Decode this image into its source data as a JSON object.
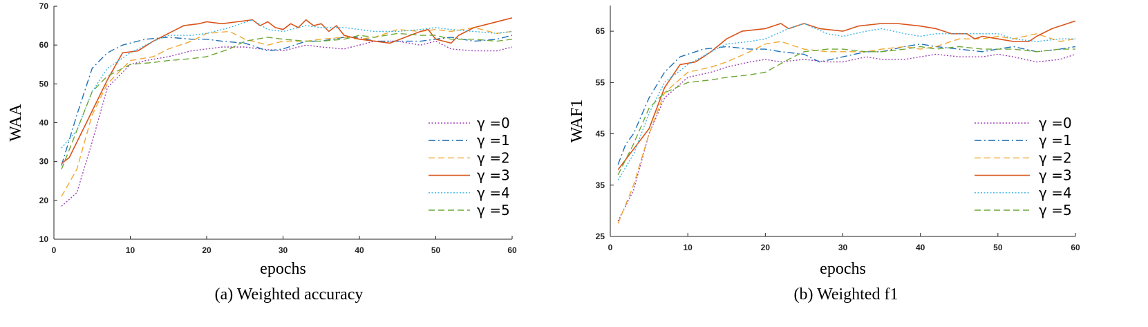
{
  "chart_data": [
    {
      "type": "line",
      "caption": "(a) Weighted accuracy",
      "xlabel": "epochs",
      "ylabel": "WAA",
      "xlim": [
        0,
        60
      ],
      "ylim": [
        10,
        70
      ],
      "xticks": [
        "0",
        "10",
        "20",
        "30",
        "40",
        "50",
        "60"
      ],
      "yticks": [
        "10",
        "20",
        "30",
        "40",
        "50",
        "60",
        "70"
      ],
      "legend_position": "lower-right",
      "series": [
        {
          "name": "γ =0",
          "color": "#9b3fb5",
          "dash": "dotted",
          "x": [
            1,
            3,
            5,
            7,
            10,
            12,
            15,
            18,
            20,
            22,
            25,
            27,
            30,
            33,
            35,
            38,
            40,
            42,
            45,
            48,
            50,
            52,
            55,
            58,
            60
          ],
          "y": [
            18.5,
            22,
            35,
            49,
            55,
            56,
            57,
            58.5,
            59,
            59.5,
            59.5,
            59,
            58.5,
            60,
            59.5,
            59,
            60,
            61,
            61,
            60,
            61,
            59,
            58.5,
            58.5,
            59.5
          ]
        },
        {
          "name": "γ =1",
          "color": "#1f6fb4",
          "dash": "dashdot",
          "x": [
            1,
            3,
            5,
            7,
            9,
            12,
            15,
            18,
            20,
            22,
            25,
            28,
            30,
            33,
            35,
            38,
            40,
            42,
            45,
            48,
            50,
            52,
            55,
            58,
            60
          ],
          "y": [
            29,
            42,
            54,
            58,
            60,
            61.5,
            62,
            61.5,
            61.5,
            61,
            60.5,
            58.5,
            59,
            61,
            61,
            62,
            62,
            61,
            61,
            61,
            61.5,
            62,
            61,
            61.5,
            62.5
          ]
        },
        {
          "name": "γ =2",
          "color": "#f0a830",
          "dash": "dashed",
          "x": [
            1,
            3,
            5,
            7,
            10,
            13,
            15,
            18,
            20,
            23,
            25,
            28,
            30,
            33,
            35,
            38,
            40,
            42,
            45,
            48,
            50,
            52,
            55,
            58,
            60
          ],
          "y": [
            21,
            28,
            42,
            50,
            56,
            57,
            59,
            61,
            63,
            63.5,
            61.5,
            60,
            61,
            61,
            61.5,
            62,
            61.5,
            62,
            64,
            63.5,
            64,
            63.5,
            64.5,
            63,
            63.5
          ]
        },
        {
          "name": "γ =3",
          "color": "#d95319",
          "dash": "solid",
          "x": [
            1,
            2,
            3,
            5,
            7,
            9,
            11,
            13,
            15,
            17,
            19,
            20,
            22,
            24,
            26,
            27,
            28,
            29,
            30,
            31,
            32,
            33,
            34,
            35,
            36,
            37,
            38,
            40,
            42,
            44,
            46,
            48,
            49,
            50,
            52,
            53,
            55,
            57,
            59,
            60
          ],
          "y": [
            29.5,
            31,
            35,
            43,
            51,
            58,
            58.5,
            61,
            63,
            65,
            65.5,
            66,
            65.5,
            66,
            66.5,
            65,
            66,
            64.5,
            64,
            65.5,
            64.5,
            66.5,
            65,
            65.5,
            63.5,
            65,
            62.5,
            61.5,
            61,
            60.5,
            62,
            63.5,
            64,
            61.5,
            60.5,
            62.5,
            64.5,
            65.5,
            66.5,
            67
          ]
        },
        {
          "name": "γ =4",
          "color": "#39b5e6",
          "dash": "dotted",
          "x": [
            1,
            3,
            5,
            7,
            10,
            13,
            15,
            18,
            20,
            23,
            26,
            28,
            30,
            33,
            35,
            38,
            40,
            42,
            45,
            48,
            50,
            52,
            55,
            58,
            60
          ],
          "y": [
            33.5,
            38,
            48,
            54,
            58,
            61,
            62.5,
            62.5,
            63,
            64.5,
            66.5,
            64,
            63.5,
            65,
            64.5,
            64.5,
            64,
            63.5,
            63.5,
            64,
            64.5,
            64,
            63.5,
            63,
            63.5
          ]
        },
        {
          "name": "γ =5",
          "color": "#6ca734",
          "dash": "dashed",
          "x": [
            1,
            3,
            5,
            7,
            10,
            13,
            15,
            18,
            20,
            23,
            25,
            28,
            30,
            33,
            35,
            38,
            40,
            42,
            45,
            48,
            50,
            52,
            55,
            58,
            60
          ],
          "y": [
            28,
            38,
            48,
            52,
            55,
            55.5,
            56,
            56.5,
            57,
            59,
            61,
            62,
            61.5,
            61,
            61,
            61.5,
            62.5,
            62,
            63,
            62.5,
            62.5,
            61.5,
            61.5,
            61,
            61.5
          ]
        }
      ]
    },
    {
      "type": "line",
      "caption": "(b) Weighted f1",
      "xlabel": "epochs",
      "ylabel": "WAF1",
      "xlim": [
        0,
        60
      ],
      "ylim": [
        25,
        70
      ],
      "xticks": [
        "0",
        "10",
        "20",
        "30",
        "40",
        "50",
        "60"
      ],
      "yticks": [
        "25",
        "35",
        "45",
        "55",
        "65"
      ],
      "ytick_values": [
        25,
        35,
        45,
        55,
        65
      ],
      "legend_position": "lower-right",
      "series": [
        {
          "name": "γ =0",
          "color": "#9b3fb5",
          "dash": "dotted",
          "x": [
            1,
            3,
            5,
            7,
            10,
            13,
            15,
            18,
            20,
            22,
            25,
            28,
            30,
            33,
            35,
            38,
            40,
            42,
            45,
            48,
            50,
            52,
            55,
            58,
            60
          ],
          "y": [
            28,
            34,
            45,
            52,
            56,
            57,
            58,
            59,
            59.5,
            59,
            59.5,
            59,
            59,
            60,
            59.5,
            59.5,
            60,
            60.5,
            60,
            60,
            60.5,
            60,
            59,
            59.5,
            60.5
          ]
        },
        {
          "name": "γ =1",
          "color": "#1f6fb4",
          "dash": "dashdot",
          "x": [
            1,
            2,
            3,
            5,
            7,
            9,
            12,
            15,
            18,
            20,
            22,
            25,
            27,
            30,
            33,
            35,
            38,
            40,
            42,
            45,
            48,
            50,
            52,
            55,
            58,
            60
          ],
          "y": [
            39,
            43,
            45,
            52,
            57,
            60,
            61.5,
            62,
            61.5,
            61.5,
            61,
            60.5,
            59,
            60,
            61,
            61,
            62,
            62.5,
            62,
            61.5,
            61,
            61.5,
            62,
            61,
            61.5,
            62
          ]
        },
        {
          "name": "γ =2",
          "color": "#f0a830",
          "dash": "dashed",
          "x": [
            1,
            3,
            5,
            7,
            10,
            13,
            15,
            18,
            20,
            22,
            25,
            28,
            30,
            33,
            35,
            38,
            40,
            42,
            45,
            48,
            50,
            52,
            55,
            58,
            60
          ],
          "y": [
            27.5,
            35,
            45,
            53,
            57,
            58,
            59,
            61,
            62.5,
            63,
            61.5,
            61,
            61,
            61,
            61.5,
            62,
            61.5,
            62,
            63.5,
            63.5,
            64,
            63.5,
            64.5,
            63,
            63.5
          ]
        },
        {
          "name": "γ =3",
          "color": "#d95319",
          "dash": "solid",
          "x": [
            1,
            3,
            5,
            7,
            9,
            11,
            13,
            15,
            17,
            20,
            22,
            23,
            25,
            27,
            30,
            32,
            35,
            37,
            40,
            42,
            44,
            45,
            46,
            47,
            48,
            50,
            52,
            54,
            55,
            57,
            59,
            60
          ],
          "y": [
            38,
            42,
            46,
            54,
            58.5,
            59,
            61,
            63.5,
            65,
            65.5,
            66.5,
            65.5,
            66.5,
            65.5,
            65,
            66,
            66.5,
            66.5,
            66,
            65.5,
            64.5,
            64.5,
            64.5,
            63.5,
            64,
            63.5,
            63,
            63,
            64,
            65.5,
            66.5,
            67
          ]
        },
        {
          "name": "γ =4",
          "color": "#39b5e6",
          "dash": "dotted",
          "x": [
            1,
            3,
            5,
            7,
            10,
            13,
            15,
            18,
            20,
            23,
            25,
            28,
            30,
            33,
            35,
            38,
            40,
            42,
            45,
            48,
            50,
            52,
            55,
            58,
            60
          ],
          "y": [
            36,
            41,
            49,
            55,
            58.5,
            61,
            62.5,
            63,
            63.5,
            65.5,
            66.5,
            64.5,
            64,
            65,
            65.5,
            64.5,
            64,
            64.5,
            64.5,
            64.5,
            64.5,
            63.5,
            63,
            63.5,
            63.5
          ]
        },
        {
          "name": "γ =5",
          "color": "#6ca734",
          "dash": "dashed",
          "x": [
            1,
            3,
            5,
            7,
            10,
            13,
            15,
            18,
            20,
            23,
            25,
            28,
            30,
            33,
            35,
            38,
            40,
            42,
            45,
            48,
            50,
            52,
            55,
            58,
            60
          ],
          "y": [
            37,
            43,
            50,
            53,
            55,
            55.5,
            56,
            56.5,
            57,
            59.5,
            61,
            61.5,
            61.5,
            61,
            61,
            61.5,
            62,
            61.5,
            62,
            61.5,
            61.5,
            61.5,
            61,
            61.5,
            61.5
          ]
        }
      ]
    }
  ]
}
